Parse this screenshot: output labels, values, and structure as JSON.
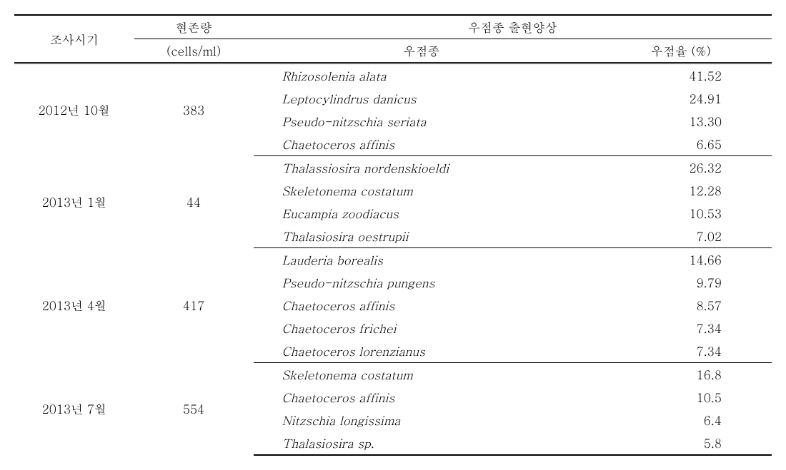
{
  "headers": {
    "period": "조사시기",
    "standing_crop": "현존량",
    "standing_crop_unit": "(cells/ml)",
    "dominant_pattern": "우점종 출현양상",
    "dominant_species": "우점종",
    "dominance_rate": "우점율 (%)"
  },
  "groups": [
    {
      "period": "2012년 10월",
      "standing_crop": "383",
      "rows": [
        {
          "species": "Rhizosolenia alata",
          "rate": "41.52"
        },
        {
          "species": "Leptocylindrus danicus",
          "rate": "24.91"
        },
        {
          "species": "Pseudo-nitzschia seriata",
          "rate": "13.30"
        },
        {
          "species": "Chaetoceros affinis",
          "rate": "6.65"
        }
      ]
    },
    {
      "period": "2013년  1월",
      "standing_crop": "44",
      "rows": [
        {
          "species": "Thalassiosira nordenskioeldi",
          "rate": "26.32"
        },
        {
          "species": "Skeletonema costatum",
          "rate": "12.28"
        },
        {
          "species": "Eucampia zoodiacus",
          "rate": "10.53"
        },
        {
          "species": "Thalasiosira oestrupii",
          "rate": "7.02"
        }
      ]
    },
    {
      "period": "2013년  4월",
      "standing_crop": "417",
      "rows": [
        {
          "species": "Lauderia borealis",
          "rate": "14.66"
        },
        {
          "species": "Pseudo-nitzschia pungens",
          "rate": "9.79"
        },
        {
          "species": "Chaetoceros affinis",
          "rate": "8.57"
        },
        {
          "species": "Chaetoceros frichei",
          "rate": "7.34"
        },
        {
          "species": "Chaetoceros lorenzianus",
          "rate": "7.34"
        }
      ]
    },
    {
      "period": "2013년 7월",
      "standing_crop": "554",
      "rows": [
        {
          "species": "Skeletonema costatum",
          "rate": "16.8"
        },
        {
          "species": "Chaetoceros affinis",
          "rate": "10.5"
        },
        {
          "species": "Nitzschia  longissima",
          "rate": "6.4"
        },
        {
          "species": "Thalasiosira sp.",
          "rate": "5.8"
        }
      ]
    }
  ]
}
